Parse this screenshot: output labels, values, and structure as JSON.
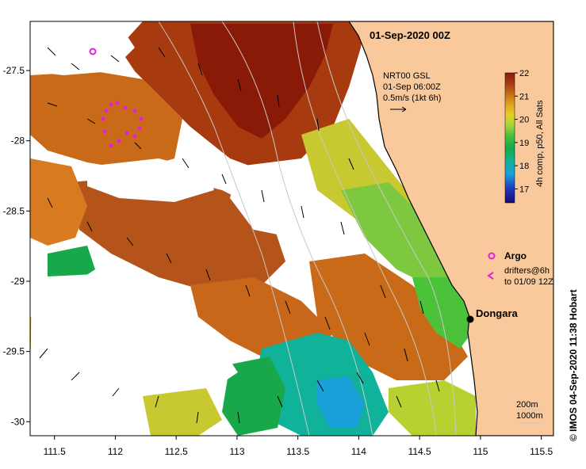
{
  "title": "01-Sep-2020 00Z",
  "vector_legend": {
    "line1": "NRT00 GSL",
    "line2": "01-Sep 06:00Z",
    "line3": "0.5m/s (1kt 6h)"
  },
  "colorbar": {
    "label": "4h comp, p50, All Sats",
    "min": 16.4,
    "max": 22,
    "ticks": [
      "22",
      "21",
      "20",
      "19",
      "18",
      "17"
    ],
    "colors": [
      "#1a0a7a",
      "#1f3fbf",
      "#1aa0d8",
      "#10b39a",
      "#18a84a",
      "#4cc23a",
      "#a8d838",
      "#e6d020",
      "#e0a020",
      "#c86a18",
      "#a83a10",
      "#8a1a08"
    ]
  },
  "axes": {
    "x_ticks": [
      "111.5",
      "112",
      "112.5",
      "113",
      "113.5",
      "114",
      "114.5",
      "115",
      "115.5"
    ],
    "y_ticks": [
      "-27.5",
      "-28",
      "-28.5",
      "-29",
      "-29.5",
      "-30"
    ],
    "lon_range": [
      111.3,
      115.6
    ],
    "lat_range": [
      -27.15,
      -30.1
    ]
  },
  "legend_items": {
    "argo_label": "Argo",
    "drifters_line1": "drifters@6h",
    "drifters_line2": "to 01/09 12Z"
  },
  "place": {
    "name": "Dongara",
    "lon": 114.93,
    "lat": -29.25
  },
  "scale_labels": {
    "depth1": "200m",
    "depth2": "1000m"
  },
  "credit": "© IMOS 04-Sep-2020 11:38 Hobart",
  "colors": {
    "land": "#f9c89b",
    "coast": "#000000",
    "argo": "#e020e0",
    "drifter": "#e020e0"
  }
}
